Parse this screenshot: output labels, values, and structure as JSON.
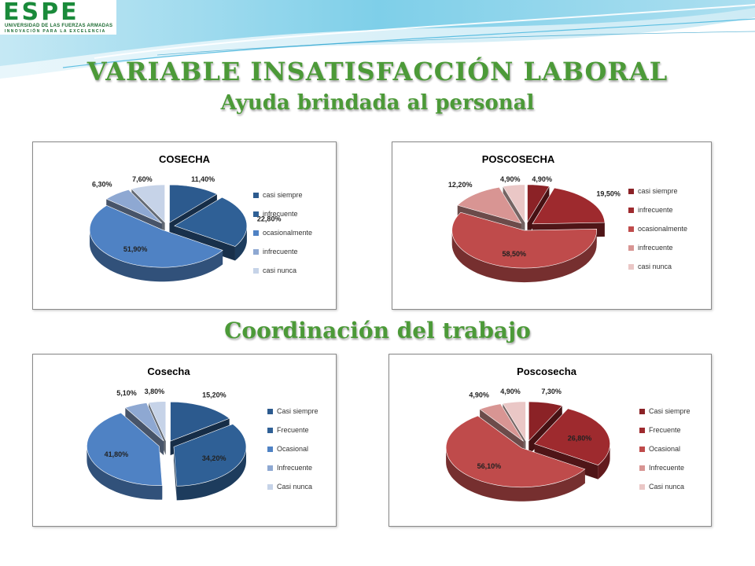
{
  "logo": {
    "word": "ESPE",
    "line1": "UNIVERSIDAD DE LAS FUERZAS ARMADAS",
    "line2": "INNOVACIÓN PARA LA EXCELENCIA"
  },
  "heading": "VARIABLE INSATISFACCIÓN LABORAL",
  "section1": "Ayuda brindada al personal",
  "section2": "Coordinación del trabajo",
  "chart_data": [
    {
      "type": "pie",
      "title": "COSECHA",
      "categories": [
        "casi siempre",
        "infrecuente",
        "ocasionalmente",
        "infrecuente",
        "casi nunca"
      ],
      "values": [
        11.4,
        22.8,
        51.9,
        6.3,
        7.6
      ],
      "labels": [
        "11,40%",
        "22,80%",
        "51,90%",
        "6,30%",
        "7,60%"
      ],
      "colors": [
        "#2c5a8e",
        "#2f6096",
        "#4f82c4",
        "#8ea8d2",
        "#c6d3e8"
      ],
      "legend": "right",
      "exploded": true
    },
    {
      "type": "pie",
      "title": "POSCOSECHA",
      "categories": [
        "casi siempre",
        "infrecuente",
        "ocasionalmente",
        "infrecuente",
        "casi nunca"
      ],
      "values": [
        4.9,
        19.5,
        58.5,
        12.2,
        4.9
      ],
      "labels": [
        "4,90%",
        "19,50%",
        "58,50%",
        "12,20%",
        "4,90%"
      ],
      "colors": [
        "#8b2226",
        "#9e2a2e",
        "#bf4b4b",
        "#d89593",
        "#eac7c6"
      ],
      "legend": "right",
      "exploded": true
    },
    {
      "type": "pie",
      "title": "Cosecha",
      "categories": [
        "Casi siempre",
        "Frecuente",
        "Ocasional",
        "Infrecuente",
        "Casi nunca"
      ],
      "values": [
        15.2,
        34.2,
        41.8,
        5.1,
        3.8
      ],
      "labels": [
        "15,20%",
        "34,20%",
        "41,80%",
        "5,10%",
        "3,80%"
      ],
      "colors": [
        "#2c5a8e",
        "#2f6096",
        "#4f82c4",
        "#8ea8d2",
        "#c6d3e8"
      ],
      "legend": "right",
      "exploded": true
    },
    {
      "type": "pie",
      "title": "Poscosecha",
      "categories": [
        "Casi siempre",
        "Frecuente",
        "Ocasional",
        "Infrecuente",
        "Casi nunca"
      ],
      "values": [
        7.3,
        26.8,
        56.1,
        4.9,
        4.9
      ],
      "labels": [
        "7,30%",
        "26,80%",
        "56,10%",
        "4,90%",
        "4,90%"
      ],
      "colors": [
        "#8b2226",
        "#9e2a2e",
        "#bf4b4b",
        "#d89593",
        "#eac7c6"
      ],
      "legend": "right",
      "exploded": true
    }
  ]
}
